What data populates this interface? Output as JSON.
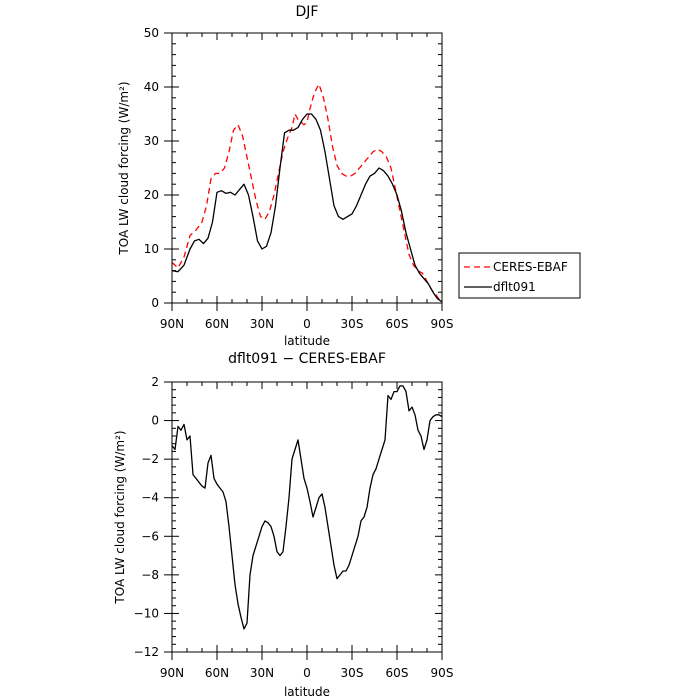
{
  "chart_data": [
    {
      "type": "line",
      "title": "DJF",
      "xlabel": "latitude",
      "ylabel": "TOA LW cloud forcing (W/m²)",
      "xlim": [
        90,
        -90
      ],
      "ylim": [
        0,
        50
      ],
      "xticks": [
        90,
        60,
        30,
        0,
        -30,
        -60,
        -90
      ],
      "xtick_labels": [
        "90N",
        "60N",
        "30N",
        "0",
        "30S",
        "60S",
        "90S"
      ],
      "yticks": [
        0,
        10,
        20,
        30,
        40,
        50
      ],
      "ytick_labels": [
        "0",
        "10",
        "20",
        "30",
        "40",
        "50"
      ],
      "legend": {
        "entries": [
          "CERES-EBAF",
          "dflt091"
        ]
      },
      "series": [
        {
          "name": "CERES-EBAF",
          "color": "#ff0000",
          "dash": "dashed",
          "x": [
            90,
            86,
            82,
            78,
            74,
            70,
            67,
            64,
            61,
            58,
            55,
            52,
            49,
            46,
            43,
            40,
            37,
            34,
            31,
            28,
            25,
            22,
            19,
            16,
            13,
            10,
            8,
            6,
            4,
            2,
            0,
            -2,
            -5,
            -8,
            -11,
            -14,
            -17,
            -20,
            -23,
            -26,
            -29,
            -32,
            -35,
            -38,
            -41,
            -44,
            -47,
            -50,
            -53,
            -56,
            -59,
            -62,
            -65,
            -68,
            -71,
            -74,
            -77,
            -80,
            -83,
            -86,
            -88,
            -90
          ],
          "y": [
            7.5,
            6.5,
            8.5,
            12.5,
            13.5,
            15,
            18,
            23,
            24,
            24,
            25,
            28,
            32,
            33,
            31,
            27,
            23,
            19,
            16,
            15.5,
            17,
            20,
            24,
            28,
            30.5,
            32.5,
            35,
            34,
            33.5,
            33,
            33.5,
            36,
            39,
            40.5,
            38,
            34,
            29,
            25.5,
            24,
            23.5,
            23.5,
            24,
            25,
            26,
            27,
            28,
            28.5,
            28,
            27,
            25,
            21,
            17,
            13,
            9,
            7,
            6,
            5.5,
            4,
            2.5,
            1.5,
            0.7,
            0.3
          ]
        },
        {
          "name": "dflt091",
          "color": "#000000",
          "dash": "solid",
          "x": [
            90,
            86,
            82,
            78,
            75,
            72,
            69,
            66,
            63,
            60,
            57,
            54,
            51,
            48,
            45,
            42,
            39,
            36,
            33,
            30,
            27,
            24,
            21,
            18,
            15,
            12,
            9,
            6,
            3,
            0,
            -3,
            -6,
            -9,
            -12,
            -15,
            -18,
            -21,
            -24,
            -27,
            -30,
            -33,
            -36,
            -39,
            -42,
            -45,
            -48,
            -51,
            -54,
            -57,
            -60,
            -63,
            -66,
            -69,
            -72,
            -75,
            -78,
            -81,
            -84,
            -87,
            -90
          ],
          "y": [
            6,
            5.8,
            7,
            10,
            11.5,
            11.8,
            11,
            12,
            15,
            20.5,
            20.8,
            20.3,
            20.5,
            20,
            21,
            22,
            20,
            16,
            11.5,
            10,
            10.5,
            13,
            18,
            25,
            31.5,
            32,
            32,
            32.5,
            34,
            35,
            35,
            34,
            32,
            28,
            23,
            18,
            16,
            15.5,
            16,
            16.5,
            18,
            20,
            22,
            23.5,
            24,
            25,
            24.5,
            23.5,
            22,
            20,
            17,
            13,
            10,
            7,
            5.5,
            4.5,
            3.5,
            2,
            0.8,
            0.2
          ]
        }
      ]
    },
    {
      "type": "line",
      "title": "dflt091 − CERES-EBAF",
      "xlabel": "latitude",
      "ylabel": "TOA LW cloud forcing (W/m²)",
      "xlim": [
        90,
        -90
      ],
      "ylim": [
        -12,
        2
      ],
      "xticks": [
        90,
        60,
        30,
        0,
        -30,
        -60,
        -90
      ],
      "xtick_labels": [
        "90N",
        "60N",
        "30N",
        "0",
        "30S",
        "60S",
        "90S"
      ],
      "yticks": [
        -12,
        -10,
        -8,
        -6,
        -4,
        -2,
        0,
        2
      ],
      "ytick_labels": [
        "−12",
        "−10",
        "−8",
        "−6",
        "−4",
        "−2",
        "0",
        "2"
      ],
      "series": [
        {
          "name": "dflt091 − CERES-EBAF",
          "color": "#000000",
          "dash": "solid",
          "x": [
            90,
            88,
            86,
            84,
            82,
            80,
            78,
            76,
            74,
            72,
            70,
            68,
            66,
            64,
            62,
            60,
            58,
            56,
            54,
            52,
            50,
            48,
            46,
            44,
            42,
            40,
            38,
            36,
            34,
            32,
            30,
            28,
            26,
            24,
            22,
            20,
            18,
            16,
            14,
            12,
            10,
            8,
            6,
            4,
            2,
            0,
            -2,
            -4,
            -6,
            -8,
            -10,
            -12,
            -14,
            -16,
            -18,
            -20,
            -22,
            -24,
            -26,
            -28,
            -30,
            -32,
            -34,
            -36,
            -38,
            -40,
            -42,
            -44,
            -46,
            -48,
            -50,
            -52,
            -54,
            -56,
            -58,
            -60,
            -62,
            -64,
            -66,
            -68,
            -70,
            -72,
            -74,
            -76,
            -78,
            -80,
            -82,
            -84,
            -86,
            -88,
            -90
          ],
          "y": [
            -1.3,
            -1.5,
            -0.3,
            -0.5,
            -0.2,
            -1.0,
            -0.8,
            -2.8,
            -3.0,
            -3.2,
            -3.4,
            -3.5,
            -2.2,
            -1.8,
            -3.0,
            -3.3,
            -3.5,
            -3.7,
            -4.2,
            -5.5,
            -7.0,
            -8.5,
            -9.5,
            -10.2,
            -10.8,
            -10.5,
            -8.0,
            -7.0,
            -6.5,
            -6.0,
            -5.5,
            -5.2,
            -5.3,
            -5.5,
            -6.0,
            -6.8,
            -7.0,
            -6.8,
            -5.5,
            -4.0,
            -2.0,
            -1.5,
            -1.0,
            -2.0,
            -3.0,
            -3.5,
            -4.2,
            -5.0,
            -4.5,
            -4.0,
            -3.8,
            -4.5,
            -5.5,
            -6.5,
            -7.5,
            -8.2,
            -8.0,
            -7.8,
            -7.8,
            -7.5,
            -7.0,
            -6.5,
            -6.0,
            -5.2,
            -5.0,
            -4.5,
            -3.5,
            -2.8,
            -2.5,
            -2.0,
            -1.5,
            -1.0,
            1.3,
            1.1,
            1.5,
            1.5,
            1.8,
            1.8,
            1.5,
            0.5,
            0.7,
            0.3,
            -0.5,
            -0.8,
            -1.5,
            -1.0,
            0.0,
            0.2,
            0.3,
            0.3,
            0.2
          ]
        }
      ]
    }
  ]
}
